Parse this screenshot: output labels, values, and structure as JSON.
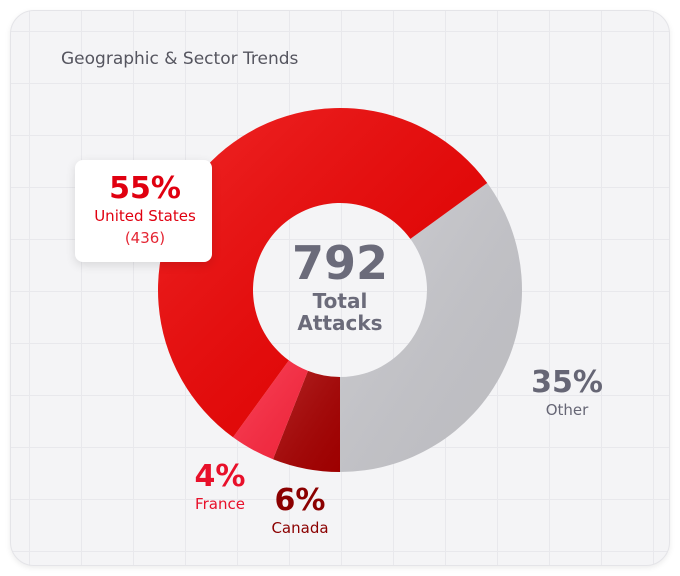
{
  "chart_data": {
    "type": "donut",
    "title": "Geographic & Sector Trends",
    "total": 792,
    "total_label": "Total Attacks",
    "categories": [
      "Other",
      "Canada",
      "France",
      "United States"
    ],
    "values": [
      35,
      6,
      4,
      55
    ],
    "value_labels": [
      "35%",
      "6%",
      "4%",
      "55%"
    ],
    "counts": [
      null,
      null,
      null,
      436
    ],
    "count_labels": [
      null,
      null,
      null,
      "(436)"
    ],
    "colors": [
      "#c9c9ce",
      "#a80000",
      "#ff2840",
      "#ee0000"
    ],
    "label_colors": [
      "#666675",
      "#8b0000",
      "#e8102a",
      "#e00010"
    ]
  }
}
